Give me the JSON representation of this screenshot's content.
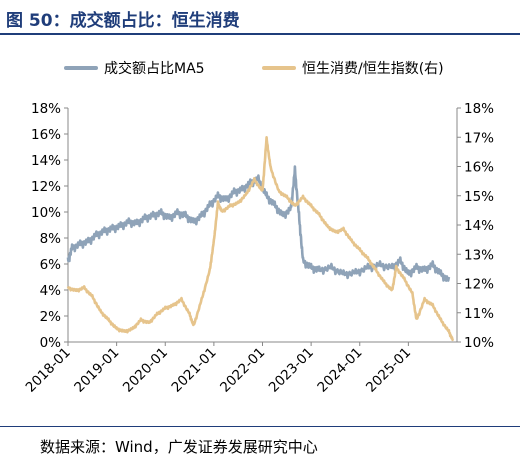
{
  "figure": {
    "title": "图 50：成交额占比：恒生消费",
    "source": "数据来源：Wind，广发证券发展研究中心"
  },
  "chart_data": {
    "type": "line",
    "legend_position": "top",
    "grid": false,
    "x_ticks": [
      "2018-01",
      "2019-01",
      "2020-01",
      "2021-01",
      "2022-01",
      "2023-01",
      "2024-01",
      "2025-01"
    ],
    "left_axis": {
      "range": [
        0,
        18
      ],
      "ticks": [
        "0%",
        "2%",
        "4%",
        "6%",
        "8%",
        "10%",
        "12%",
        "14%",
        "16%",
        "18%"
      ]
    },
    "right_axis": {
      "range": [
        10,
        18
      ],
      "ticks": [
        "10%",
        "11%",
        "12%",
        "13%",
        "14%",
        "15%",
        "16%",
        "17%",
        "18%"
      ]
    },
    "series": [
      {
        "name": "成交额占比MA5",
        "axis": "left",
        "color": "#8fa3b8",
        "points": [
          [
            "2018-01",
            6.5
          ],
          [
            "2018-02",
            7.5
          ],
          [
            "2018-04",
            7.8
          ],
          [
            "2018-06",
            8.0
          ],
          [
            "2018-08",
            8.5
          ],
          [
            "2018-10",
            8.8
          ],
          [
            "2018-12",
            9.0
          ],
          [
            "2019-02",
            9.2
          ],
          [
            "2019-04",
            9.5
          ],
          [
            "2019-06",
            9.4
          ],
          [
            "2019-08",
            9.8
          ],
          [
            "2019-10",
            10.0
          ],
          [
            "2019-12",
            10.2
          ],
          [
            "2020-02",
            9.8
          ],
          [
            "2020-04",
            10.2
          ],
          [
            "2020-06",
            10.0
          ],
          [
            "2020-08",
            9.5
          ],
          [
            "2020-10",
            10.0
          ],
          [
            "2020-12",
            10.8
          ],
          [
            "2021-02",
            11.5
          ],
          [
            "2021-04",
            11.2
          ],
          [
            "2021-06",
            11.8
          ],
          [
            "2021-08",
            12.0
          ],
          [
            "2021-10",
            12.5
          ],
          [
            "2021-12",
            12.8
          ],
          [
            "2022-02",
            11.5
          ],
          [
            "2022-04",
            10.8
          ],
          [
            "2022-06",
            10.0
          ],
          [
            "2022-08",
            10.5
          ],
          [
            "2022-09",
            13.5
          ],
          [
            "2022-10",
            10.0
          ],
          [
            "2022-11",
            6.5
          ],
          [
            "2023-01",
            6.0
          ],
          [
            "2023-03",
            5.8
          ],
          [
            "2023-06",
            6.0
          ],
          [
            "2023-09",
            5.5
          ],
          [
            "2023-12",
            5.6
          ],
          [
            "2024-03",
            6.0
          ],
          [
            "2024-06",
            6.2
          ],
          [
            "2024-09",
            6.0
          ],
          [
            "2024-11",
            6.5
          ],
          [
            "2025-01",
            5.5
          ],
          [
            "2025-03",
            6.0
          ],
          [
            "2025-05",
            5.8
          ],
          [
            "2025-07",
            6.2
          ],
          [
            "2025-09",
            5.5
          ],
          [
            "2025-11",
            5.0
          ]
        ]
      },
      {
        "name": "恒生消费/恒生指数(右)",
        "axis": "right",
        "color": "#e6c48c",
        "points": [
          [
            "2018-01",
            11.9
          ],
          [
            "2018-03",
            11.8
          ],
          [
            "2018-05",
            11.9
          ],
          [
            "2018-07",
            11.6
          ],
          [
            "2018-09",
            11.1
          ],
          [
            "2018-11",
            10.8
          ],
          [
            "2019-01",
            10.5
          ],
          [
            "2019-03",
            10.4
          ],
          [
            "2019-05",
            10.5
          ],
          [
            "2019-07",
            10.8
          ],
          [
            "2019-09",
            10.7
          ],
          [
            "2019-11",
            11.0
          ],
          [
            "2020-01",
            11.2
          ],
          [
            "2020-03",
            11.3
          ],
          [
            "2020-05",
            11.5
          ],
          [
            "2020-07",
            11.0
          ],
          [
            "2020-08",
            10.6
          ],
          [
            "2020-10",
            11.5
          ],
          [
            "2020-12",
            12.5
          ],
          [
            "2021-01",
            13.5
          ],
          [
            "2021-02",
            14.8
          ],
          [
            "2021-03",
            14.5
          ],
          [
            "2021-05",
            14.7
          ],
          [
            "2021-07",
            14.8
          ],
          [
            "2021-09",
            15.1
          ],
          [
            "2021-11",
            15.6
          ],
          [
            "2022-01",
            15.2
          ],
          [
            "2022-02",
            17.0
          ],
          [
            "2022-03",
            16.0
          ],
          [
            "2022-05",
            15.2
          ],
          [
            "2022-07",
            15.0
          ],
          [
            "2022-09",
            14.7
          ],
          [
            "2022-11",
            15.0
          ],
          [
            "2023-01",
            14.7
          ],
          [
            "2023-03",
            14.4
          ],
          [
            "2023-05",
            14.0
          ],
          [
            "2023-07",
            13.8
          ],
          [
            "2023-09",
            13.9
          ],
          [
            "2023-11",
            13.5
          ],
          [
            "2024-01",
            13.2
          ],
          [
            "2024-03",
            12.9
          ],
          [
            "2024-05",
            12.5
          ],
          [
            "2024-07",
            12.1
          ],
          [
            "2024-09",
            11.8
          ],
          [
            "2024-10",
            12.6
          ],
          [
            "2024-12",
            12.2
          ],
          [
            "2025-02",
            11.7
          ],
          [
            "2025-03",
            10.8
          ],
          [
            "2025-05",
            11.5
          ],
          [
            "2025-07",
            11.3
          ],
          [
            "2025-09",
            10.8
          ],
          [
            "2025-11",
            10.4
          ],
          [
            "2025-12",
            10.1
          ]
        ]
      }
    ]
  }
}
